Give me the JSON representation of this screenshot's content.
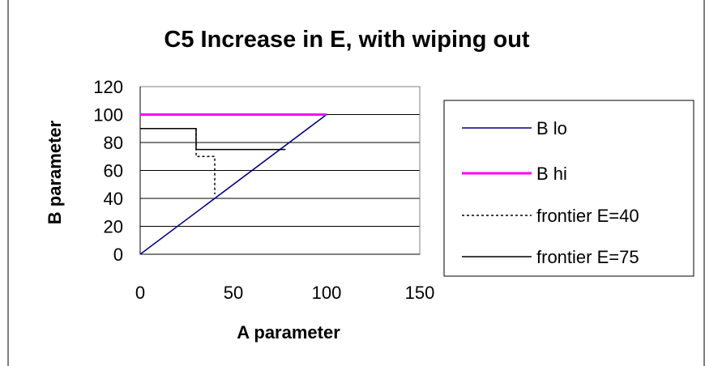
{
  "chart_data": {
    "type": "line",
    "title": "C5 Increase in E, with wiping out",
    "xlabel": "A parameter",
    "ylabel": "B parameter",
    "xlim": [
      0,
      150
    ],
    "ylim": [
      0,
      120
    ],
    "x_ticks": [
      "0",
      "50",
      "100",
      "150"
    ],
    "y_ticks": [
      "0",
      "20",
      "40",
      "60",
      "80",
      "100",
      "120"
    ],
    "grid": "horizontal",
    "legend_position": "right",
    "series": [
      {
        "name": "B lo",
        "color": "#000080",
        "dash": "solid",
        "points": [
          [
            0,
            0
          ],
          [
            100,
            100
          ]
        ]
      },
      {
        "name": "B hi",
        "color": "#ff00ff",
        "dash": "solid",
        "points": [
          [
            0,
            100
          ],
          [
            100,
            100
          ]
        ]
      },
      {
        "name": "frontier E=40",
        "color": "#000000",
        "dash": "dotted",
        "points": [
          [
            30,
            90
          ],
          [
            30,
            70
          ],
          [
            40,
            70
          ],
          [
            40,
            43
          ]
        ]
      },
      {
        "name": "frontier E=75",
        "color": "#000000",
        "dash": "solid",
        "points": [
          [
            0,
            90
          ],
          [
            30,
            90
          ],
          [
            30,
            75
          ],
          [
            78,
            75
          ]
        ]
      }
    ]
  }
}
